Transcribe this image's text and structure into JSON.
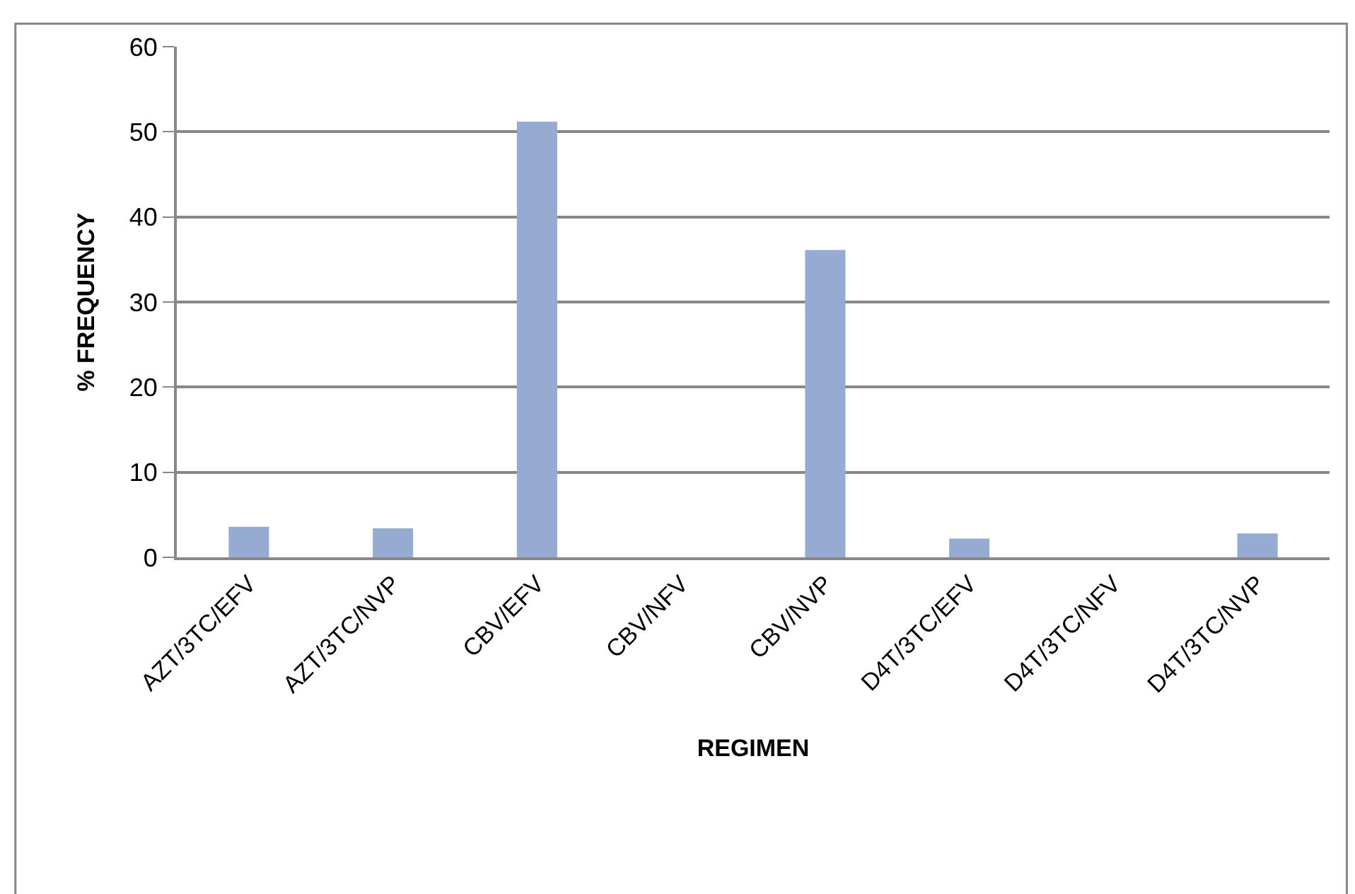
{
  "chart_data": {
    "type": "bar",
    "xlabel": "REGIMEN",
    "ylabel": "% FREQUENCY",
    "categories": [
      "AZT/3TC/EFV",
      "AZT/3TC/NVP",
      "CBV/EFV",
      "CBV/NFV",
      "CBV/NVP",
      "D4T/3TC/EFV",
      "D4T/3TC/NFV",
      "D4T/3TC/NVP"
    ],
    "values": [
      3.6,
      3.4,
      51.2,
      0,
      36.1,
      2.2,
      0,
      2.8
    ],
    "color": "#95abd2",
    "ylim": [
      0,
      60
    ],
    "yticks": [
      0,
      10,
      20,
      30,
      40,
      50,
      60
    ],
    "grid": "y"
  }
}
